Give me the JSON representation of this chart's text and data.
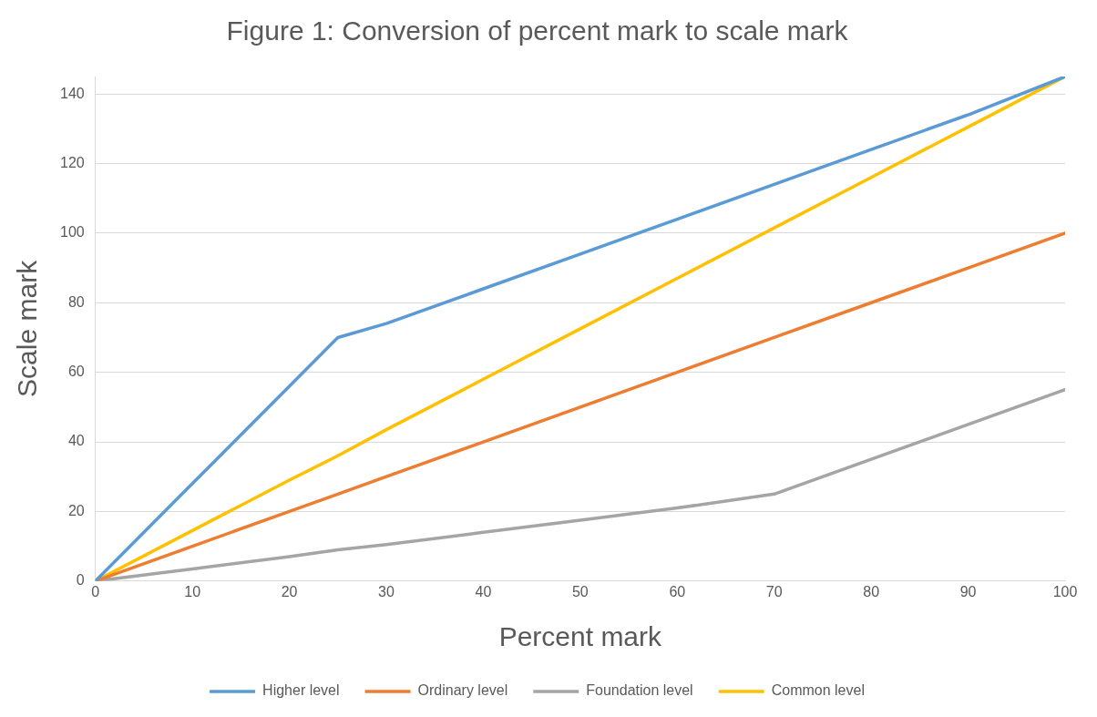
{
  "chart_data": {
    "type": "line",
    "title": "Figure 1: Conversion of percent mark to scale mark",
    "xlabel": "Percent mark",
    "ylabel": "Scale mark",
    "x": [
      0,
      10,
      20,
      25,
      30,
      40,
      50,
      60,
      70,
      80,
      90,
      100
    ],
    "series": [
      {
        "name": "Higher level",
        "color": "#5b9bd5",
        "values": [
          0,
          28,
          56,
          70,
          74,
          84,
          94,
          104,
          114,
          124,
          134,
          145
        ]
      },
      {
        "name": "Ordinary level",
        "color": "#ed7d31",
        "values": [
          0,
          10,
          20,
          25,
          30,
          40,
          50,
          60,
          70,
          80,
          90,
          100
        ]
      },
      {
        "name": "Foundation level",
        "color": "#a5a5a5",
        "values": [
          0,
          3.5,
          7,
          9,
          10.5,
          14,
          17.5,
          21,
          25,
          35,
          45,
          55
        ]
      },
      {
        "name": "Common level",
        "color": "#ffc000",
        "values": [
          0,
          14.5,
          29,
          36,
          43.5,
          58,
          72.5,
          87,
          101.5,
          116,
          130.5,
          145
        ]
      }
    ],
    "xlim": [
      0,
      100
    ],
    "xticks": [
      0,
      10,
      20,
      30,
      40,
      50,
      60,
      70,
      80,
      90,
      100
    ],
    "ylim": [
      0,
      145
    ],
    "yticks": [
      0,
      20,
      40,
      60,
      80,
      100,
      120,
      140
    ],
    "grid": "y",
    "legend": "bottom",
    "marker": "none",
    "line_style": "solid"
  }
}
